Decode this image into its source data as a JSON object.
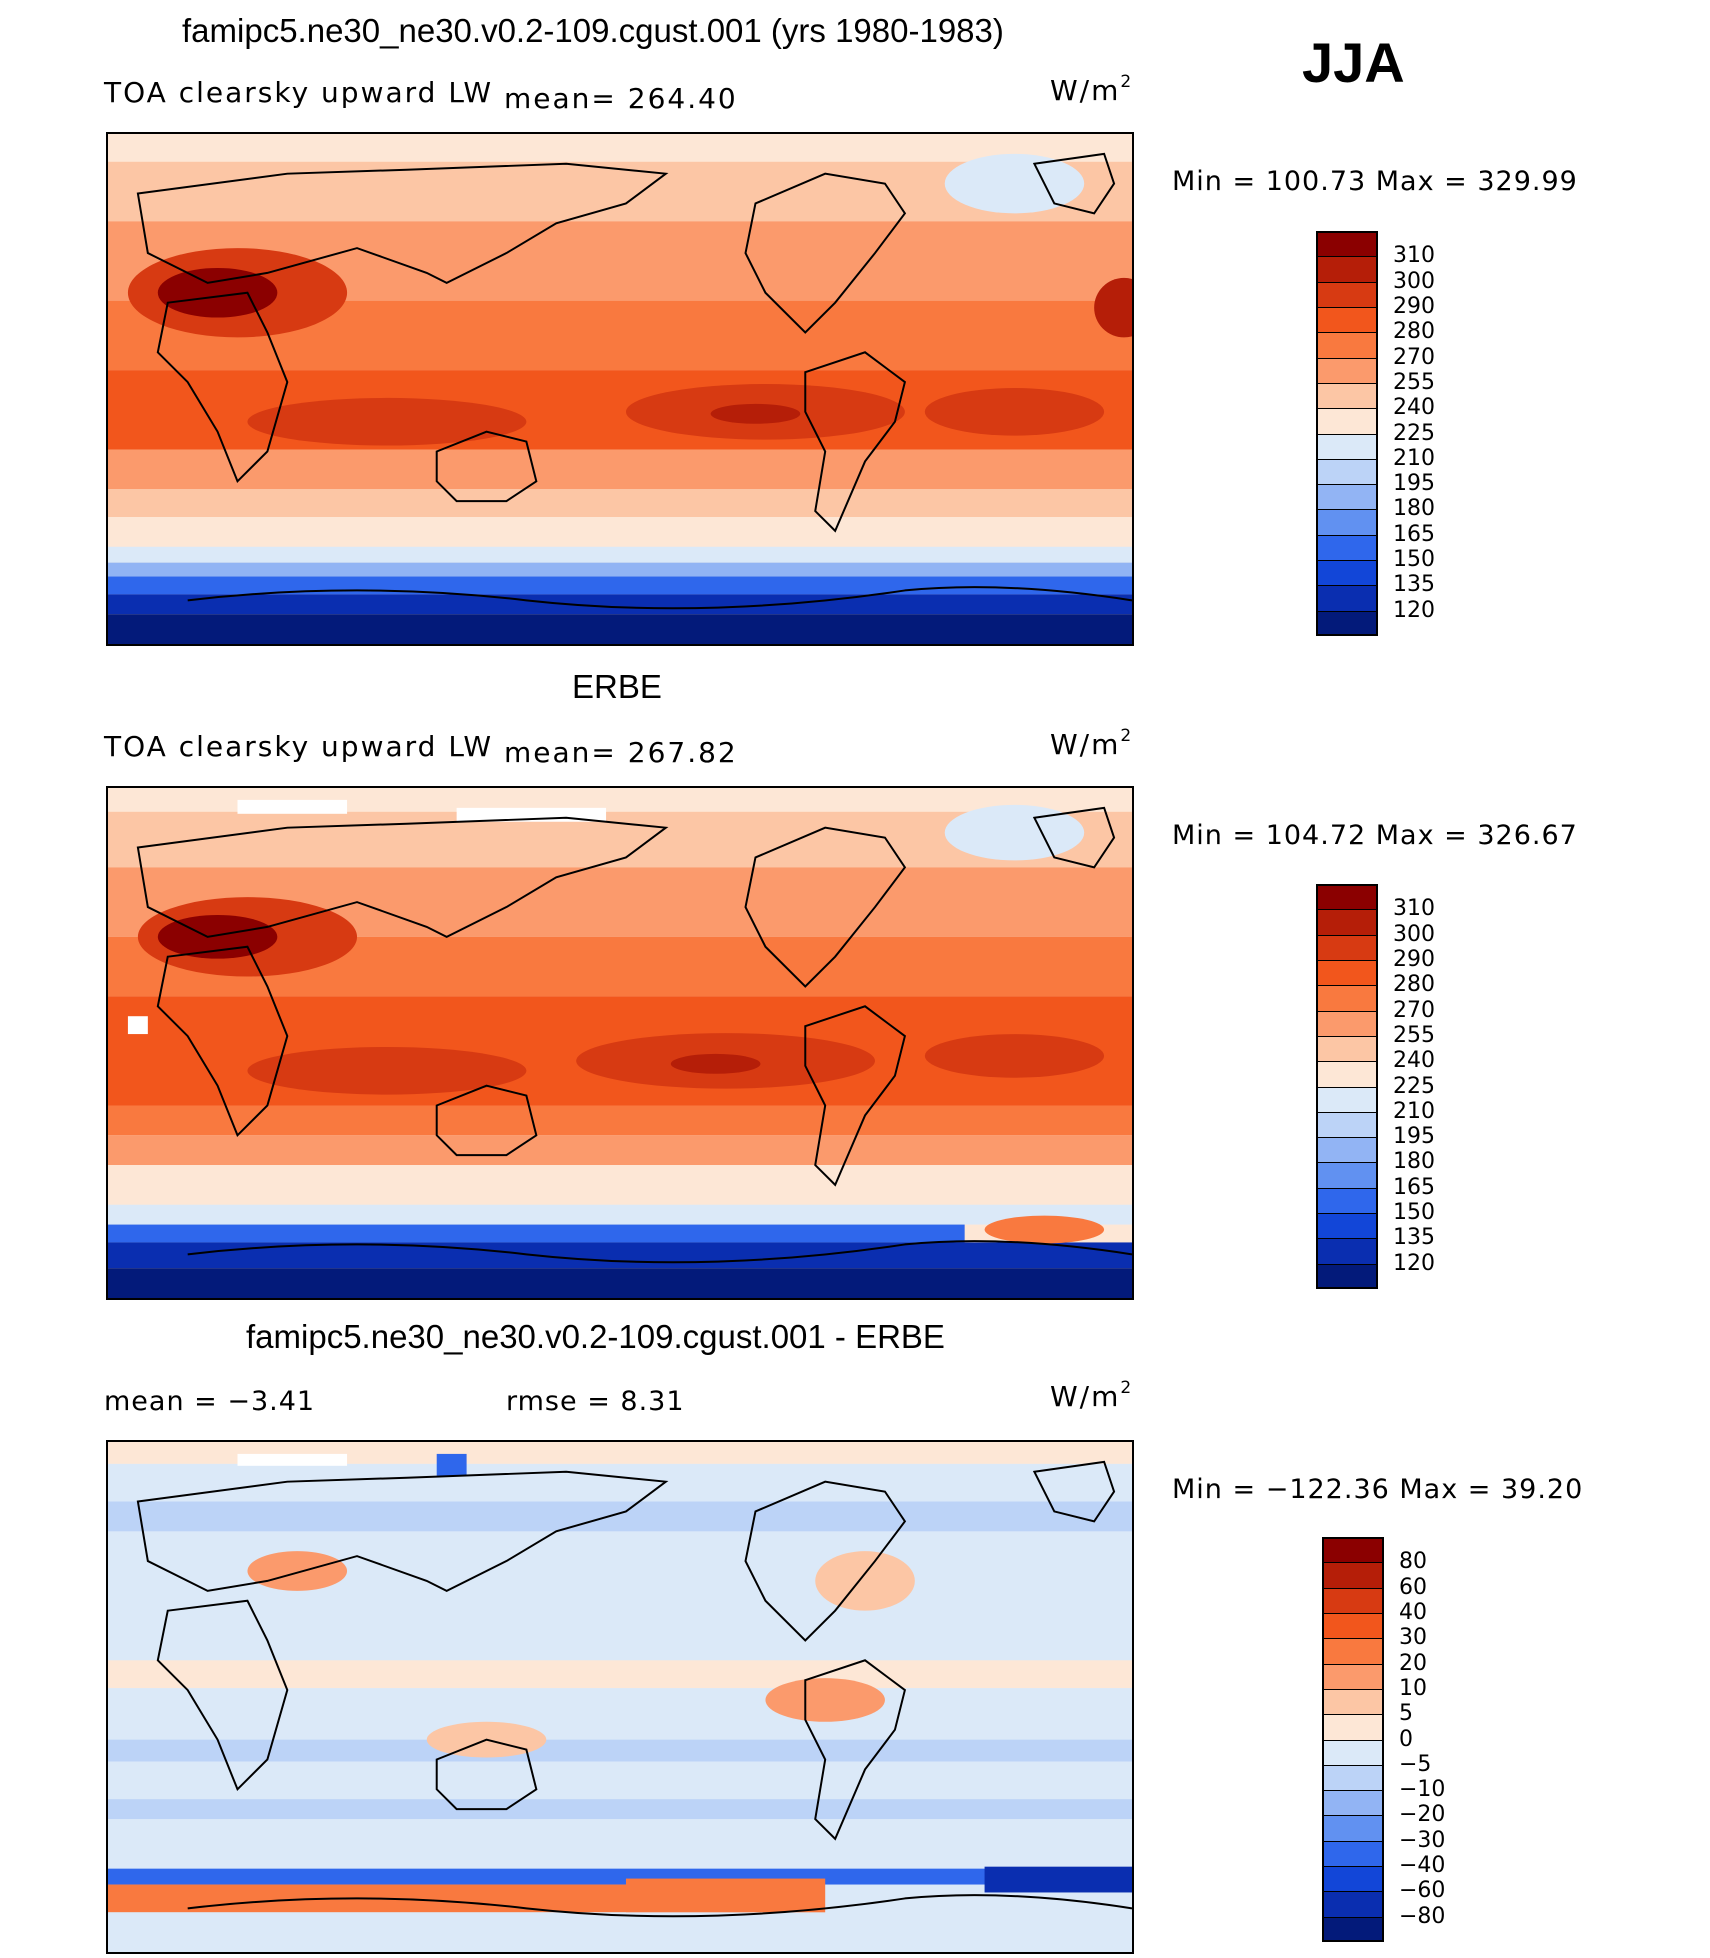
{
  "header": {
    "season": "JJA"
  },
  "panels": [
    {
      "title": "famipc5.ne30_ne30.v0.2-109.cgust.001 (yrs 1980-1983)",
      "left_text": "TOA clearsky upward LW",
      "mid_text": "mean= 264.40",
      "units": "W/m",
      "units_sup": "2",
      "minmax": "Min = 100.73 Max = 329.99",
      "colorbar": {
        "levels": [
          "310",
          "300",
          "290",
          "280",
          "270",
          "255",
          "240",
          "225",
          "210",
          "195",
          "180",
          "165",
          "150",
          "135",
          "120"
        ],
        "colors": [
          "#8b0000",
          "#b51e08",
          "#d73a12",
          "#f2561c",
          "#f9793f",
          "#fb9a6c",
          "#fcc6a5",
          "#fde7d6",
          "#dbe9f8",
          "#bcd3f7",
          "#92b4f4",
          "#6191f1",
          "#2f67ec",
          "#1246d8",
          "#0a2eb0",
          "#031a7a"
        ]
      }
    },
    {
      "title": "ERBE",
      "left_text": "TOA clearsky upward LW",
      "mid_text": "mean= 267.82",
      "units": "W/m",
      "units_sup": "2",
      "minmax": "Min = 104.72 Max = 326.67",
      "colorbar": {
        "levels": [
          "310",
          "300",
          "290",
          "280",
          "270",
          "255",
          "240",
          "225",
          "210",
          "195",
          "180",
          "165",
          "150",
          "135",
          "120"
        ],
        "colors": [
          "#8b0000",
          "#b51e08",
          "#d73a12",
          "#f2561c",
          "#f9793f",
          "#fb9a6c",
          "#fcc6a5",
          "#fde7d6",
          "#dbe9f8",
          "#bcd3f7",
          "#92b4f4",
          "#6191f1",
          "#2f67ec",
          "#1246d8",
          "#0a2eb0",
          "#031a7a"
        ]
      }
    },
    {
      "title": "famipc5.ne30_ne30.v0.2-109.cgust.001 - ERBE",
      "left_text": "mean =   −3.41",
      "mid_text": "rmse =    8.31",
      "units": "W/m",
      "units_sup": "2",
      "minmax": "Min = −122.36 Max =  39.20",
      "colorbar": {
        "levels": [
          "80",
          "60",
          "40",
          "30",
          "20",
          "10",
          "5",
          "0",
          "−5",
          "−10",
          "−20",
          "−30",
          "−40",
          "−60",
          "−80"
        ],
        "colors": [
          "#8b0000",
          "#b51e08",
          "#d73a12",
          "#f2561c",
          "#f9793f",
          "#fb9a6c",
          "#fcc6a5",
          "#fde7d6",
          "#dbe9f8",
          "#bcd3f7",
          "#92b4f4",
          "#6191f1",
          "#2f67ec",
          "#1246d8",
          "#0a2eb0",
          "#031a7a"
        ]
      }
    }
  ]
}
